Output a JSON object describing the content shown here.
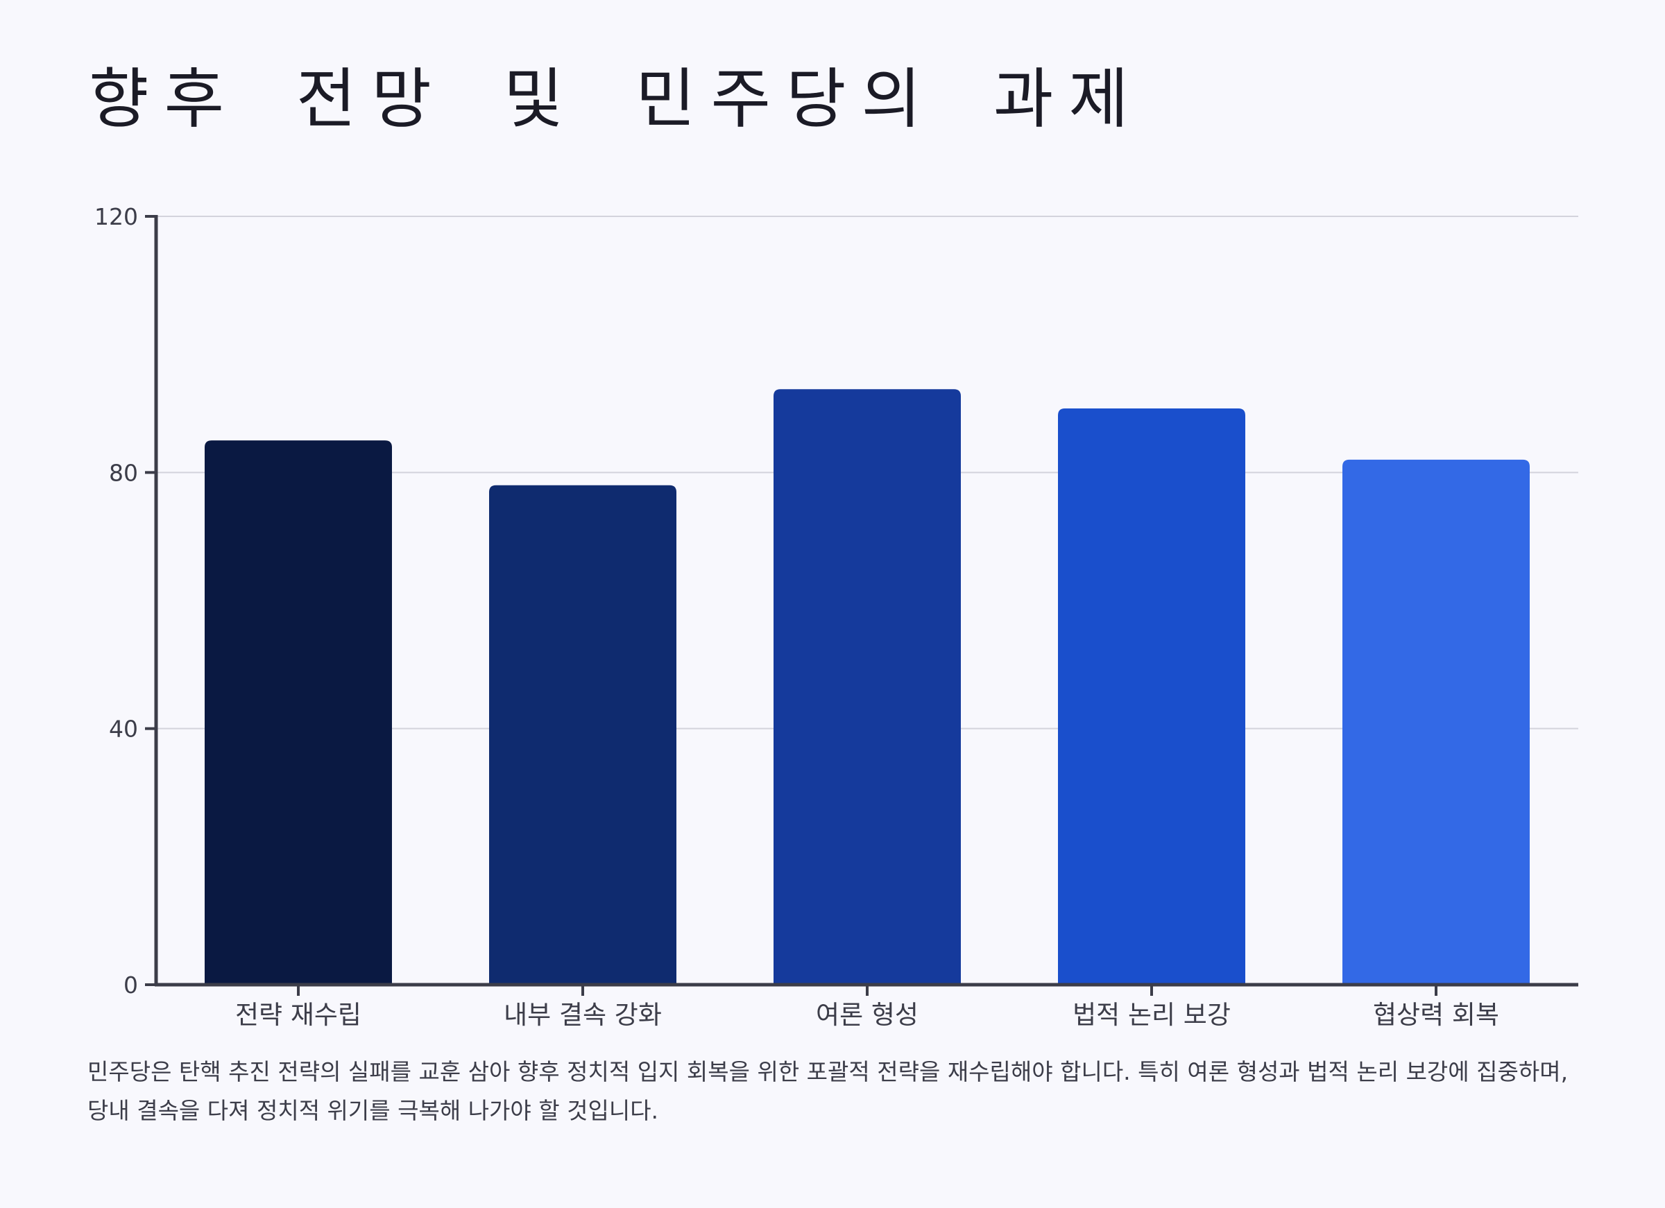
{
  "title": "향후 전망 및 민주당의 과제",
  "description": "민주당은 탄핵 추진 전략의 실패를 교훈 삼아 향후 정치적 입지 회복을 위한 포괄적 전략을 재수립해야 합니다. 특히 여론 형성과 법적 논리 보강에 집중하며, 당내 결속을 다져 정치적 위기를 극복해 나가야 할 것입니다.",
  "chart_data": {
    "type": "bar",
    "categories": [
      "전략 재수립",
      "내부 결속 강화",
      "여론 형성",
      "법적 논리 보강",
      "협상력 회복"
    ],
    "values": [
      85,
      78,
      93,
      90,
      82
    ],
    "colors": [
      "#0a1942",
      "#0f2b6f",
      "#153a9c",
      "#1a4fcc",
      "#3369e6"
    ],
    "ylim": [
      0,
      120
    ],
    "yticks": [
      0,
      40,
      80,
      120
    ],
    "grid": true,
    "legend": "none"
  }
}
